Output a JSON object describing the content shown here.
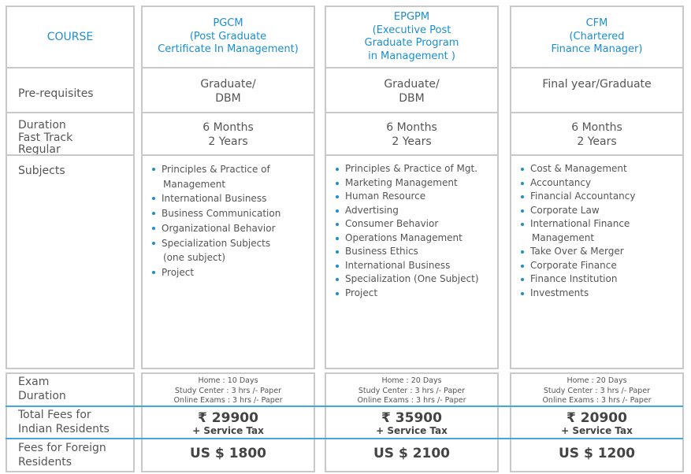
{
  "labels": {
    "course": "COURSE",
    "prereq": "Pre-requisites",
    "duration": [
      "Duration",
      "Fast Track",
      "Regular"
    ],
    "subjects": "Subjects",
    "exam": [
      "Exam",
      "Duration"
    ],
    "indian": [
      "Total Fees for",
      "Indian Residents"
    ],
    "foreign": [
      "Fees for Foreign",
      "Residents"
    ]
  },
  "courses": [
    {
      "title": [
        "PGCM",
        "(Post Graduate",
        "Certificate In Management)"
      ],
      "prereq": [
        "Graduate/",
        "DBM"
      ],
      "duration": [
        "6 Months",
        "2 Years"
      ],
      "subjects": [
        "Principles & Practice of",
        "Management",
        "International Business",
        "Business Communication",
        "Organizational Behavior",
        "Specialization Subjects",
        "(one subject)",
        "Project"
      ],
      "exam": [
        "Home : 10 Days",
        "Study Center : 3 hrs /- Paper",
        "Online Exams : 3 hrs /- Paper"
      ],
      "fee_inr": "₹ 29900",
      "tax": "+ Service Tax",
      "fee_usd": "US $ 1800"
    },
    {
      "title": [
        "EPGPM",
        "(Executive Post",
        "Graduate Program",
        "in Management )"
      ],
      "prereq": [
        "Graduate/",
        "DBM"
      ],
      "duration": [
        "6 Months",
        "2 Years"
      ],
      "subjects": [
        "Principles & Practice of Mgt.",
        "Marketing Management",
        "Human Resource",
        "Advertising",
        "Consumer Behavior",
        "Operations Management",
        "Business Ethics",
        "International Business",
        "Specialization (One Subject)",
        "Project"
      ],
      "exam": [
        "Home : 20 Days",
        "Study Center : 3 hrs /- Paper",
        "Online Exams : 3 hrs /- Paper"
      ],
      "fee_inr": "₹ 35900",
      "tax": "+ Service Tax",
      "fee_usd": "US $ 2100"
    },
    {
      "title": [
        "CFM",
        "(Chartered",
        "Finance Manager)"
      ],
      "prereq": [
        "Final year/Graduate"
      ],
      "duration": [
        "6 Months",
        "2 Years"
      ],
      "subjects": [
        "Cost & Management",
        "Accountancy",
        "Financial Accountancy",
        "Corporate Law",
        "International Finance",
        "Management",
        "Take Over & Merger",
        "Corporate Finance",
        "Finance Institution",
        "Investments"
      ],
      "exam": [
        "Home : 20 Days",
        "Study Center : 3 hrs /- Paper",
        "Online Exams : 3 hrs /- Paper"
      ],
      "fee_inr": "₹ 20900",
      "tax": "+ Service Tax",
      "fee_usd": "US $ 1200"
    }
  ]
}
